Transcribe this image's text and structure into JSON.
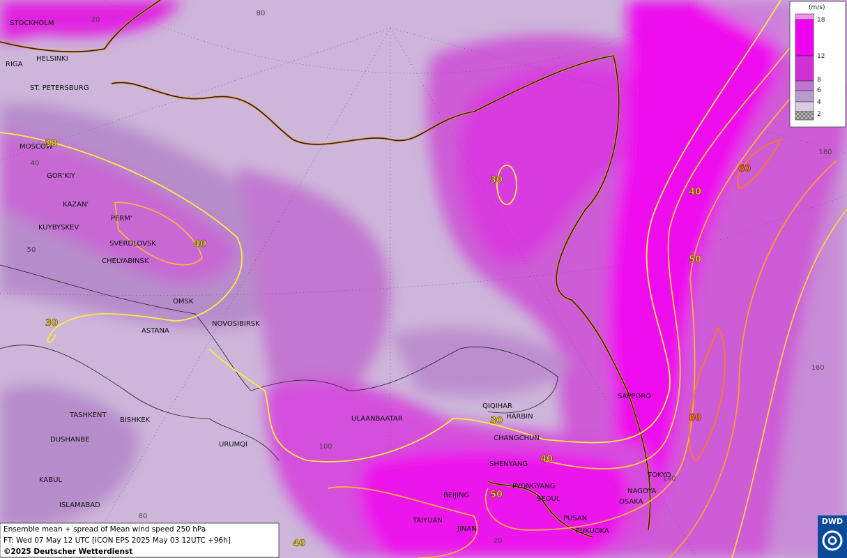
{
  "map": {
    "cities": [
      "STOCKHOLM",
      "HELSINKI",
      "RIGA",
      "ST. PETERSBURG",
      "MOSCOW",
      "GOR'KIY",
      "KAZAN'",
      "PERM'",
      "KUYBYSKEV",
      "SVERDLOVSK",
      "CHELYABINSK",
      "OMSK",
      "ASTANA",
      "NOVOSIBIRSK",
      "TASHKENT",
      "BISHKEK",
      "DUSHANBE",
      "URUMQI",
      "ULAANBAATAR",
      "QIQIHAR",
      "HARBIN",
      "CHANGCHUN",
      "SHENYANG",
      "PYONGYANG",
      "BEIJING",
      "SEOUL",
      "SAPPORO",
      "TOKYO",
      "NAGOYA",
      "OSAKA",
      "PUSAN",
      "FUKUOKA",
      "TAIYUAN",
      "JINAN",
      "KABUL",
      "ISLAMABAD"
    ],
    "contour_labels": [
      "30",
      "30",
      "30",
      "30",
      "40",
      "40",
      "40",
      "40",
      "50",
      "50",
      "60",
      "60"
    ],
    "grid_labels": [
      "80",
      "20",
      "40",
      "50",
      "100",
      "80",
      "180",
      "160",
      "140",
      "20"
    ]
  },
  "legend": {
    "unit": "(m/s)",
    "levels": [
      18,
      12,
      8,
      6,
      4,
      2
    ]
  },
  "footer": {
    "line1": "Ensemble mean + spread of Mean wind speed 250 hPa",
    "line2": "FT: Wed 07 May 12 UTC [ICON EPS 2025 May 03 12UTC +96h]",
    "line3": "©2025 Deutscher Wetterdienst"
  },
  "logo": "DWD"
}
